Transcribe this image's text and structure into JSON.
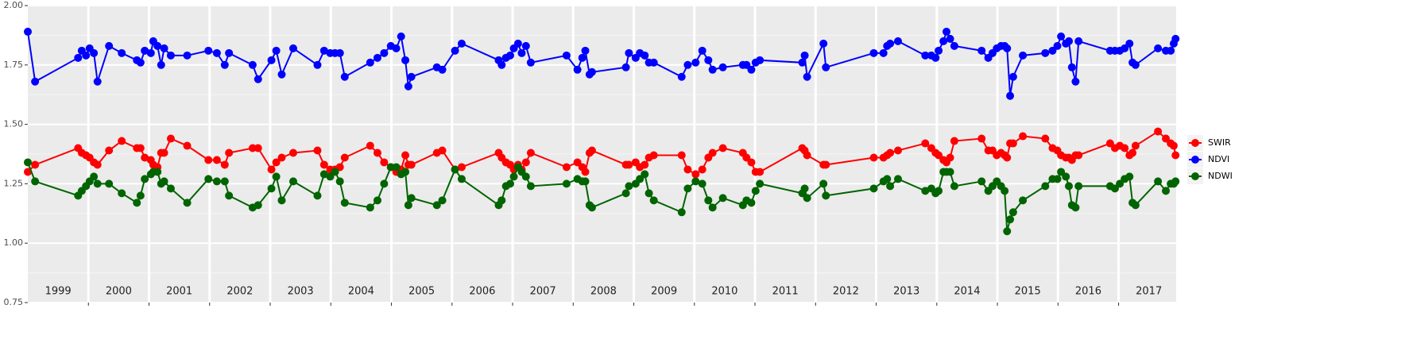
{
  "chart_data": {
    "type": "line",
    "x": [
      1999.0,
      1999.12,
      1999.83,
      1999.89,
      1999.96,
      2000.02,
      2000.09,
      2000.15,
      2000.34,
      2000.55,
      2000.8,
      2000.86,
      2000.93,
      2001.03,
      2001.07,
      2001.14,
      2001.2,
      2001.25,
      2001.36,
      2001.63,
      2001.98,
      2002.12,
      2002.25,
      2002.32,
      2002.71,
      2002.8,
      2003.02,
      2003.1,
      2003.19,
      2003.38,
      2003.78,
      2003.89,
      2003.99,
      2004.07,
      2004.15,
      2004.23,
      2004.65,
      2004.77,
      2004.88,
      2004.99,
      2005.08,
      2005.16,
      2005.23,
      2005.28,
      2005.33,
      2005.75,
      2005.84,
      2006.05,
      2006.16,
      2006.77,
      2006.82,
      2006.89,
      2006.96,
      2007.02,
      2007.09,
      2007.15,
      2007.22,
      2007.3,
      2007.89,
      2008.07,
      2008.15,
      2008.2,
      2008.27,
      2008.31,
      2008.87,
      2008.92,
      2009.03,
      2009.1,
      2009.18,
      2009.25,
      2009.33,
      2009.79,
      2009.89,
      2010.02,
      2010.13,
      2010.23,
      2010.3,
      2010.47,
      2010.8,
      2010.86,
      2010.94,
      2011.01,
      2011.08,
      2011.78,
      2011.82,
      2011.86,
      2012.13,
      2012.17,
      2012.96,
      2013.12,
      2013.18,
      2013.23,
      2013.36,
      2013.81,
      2013.91,
      2013.98,
      2014.03,
      2014.11,
      2014.16,
      2014.22,
      2014.29,
      2014.74,
      2014.85,
      2014.92,
      2014.99,
      2015.06,
      2015.12,
      2015.16,
      2015.21,
      2015.26,
      2015.42,
      2015.79,
      2015.91,
      2015.99,
      2016.05,
      2016.13,
      2016.18,
      2016.23,
      2016.29,
      2016.34,
      2016.86,
      2016.94,
      2017.02,
      2017.1,
      2017.18,
      2017.23,
      2017.28,
      2017.65,
      2017.78,
      2017.86,
      2017.91,
      2017.94
    ],
    "series": [
      {
        "name": "SWIR",
        "color": "#ff0000",
        "values": [
          1.3,
          1.33,
          1.4,
          1.38,
          1.37,
          1.36,
          1.34,
          1.33,
          1.39,
          1.43,
          1.4,
          1.4,
          1.36,
          1.35,
          1.33,
          1.32,
          1.38,
          1.38,
          1.44,
          1.41,
          1.35,
          1.35,
          1.33,
          1.38,
          1.4,
          1.4,
          1.31,
          1.34,
          1.36,
          1.38,
          1.39,
          1.33,
          1.31,
          1.31,
          1.32,
          1.36,
          1.41,
          1.38,
          1.34,
          1.32,
          1.3,
          1.31,
          1.37,
          1.33,
          1.33,
          1.38,
          1.39,
          1.31,
          1.32,
          1.38,
          1.36,
          1.34,
          1.33,
          1.31,
          1.33,
          1.31,
          1.34,
          1.38,
          1.32,
          1.34,
          1.32,
          1.3,
          1.38,
          1.39,
          1.33,
          1.33,
          1.34,
          1.32,
          1.33,
          1.36,
          1.37,
          1.37,
          1.31,
          1.29,
          1.31,
          1.36,
          1.38,
          1.4,
          1.38,
          1.36,
          1.34,
          1.3,
          1.3,
          1.4,
          1.39,
          1.37,
          1.33,
          1.33,
          1.36,
          1.36,
          1.37,
          1.38,
          1.39,
          1.42,
          1.4,
          1.38,
          1.37,
          1.35,
          1.34,
          1.36,
          1.43,
          1.44,
          1.39,
          1.39,
          1.37,
          1.38,
          1.37,
          1.36,
          1.42,
          1.42,
          1.45,
          1.44,
          1.4,
          1.39,
          1.37,
          1.36,
          1.36,
          1.35,
          1.37,
          1.37,
          1.42,
          1.4,
          1.41,
          1.4,
          1.37,
          1.38,
          1.41,
          1.47,
          1.44,
          1.42,
          1.41,
          1.37
        ]
      },
      {
        "name": "NDVI",
        "color": "#0000ff",
        "values": [
          1.89,
          1.68,
          1.78,
          1.81,
          1.79,
          1.82,
          1.8,
          1.68,
          1.83,
          1.8,
          1.77,
          1.76,
          1.81,
          1.8,
          1.85,
          1.83,
          1.75,
          1.82,
          1.79,
          1.79,
          1.81,
          1.8,
          1.75,
          1.8,
          1.75,
          1.69,
          1.77,
          1.81,
          1.71,
          1.82,
          1.75,
          1.81,
          1.8,
          1.8,
          1.8,
          1.7,
          1.76,
          1.78,
          1.8,
          1.83,
          1.82,
          1.87,
          1.77,
          1.66,
          1.7,
          1.74,
          1.73,
          1.81,
          1.84,
          1.77,
          1.75,
          1.78,
          1.79,
          1.82,
          1.84,
          1.8,
          1.83,
          1.76,
          1.79,
          1.73,
          1.78,
          1.81,
          1.71,
          1.72,
          1.74,
          1.8,
          1.78,
          1.8,
          1.79,
          1.76,
          1.76,
          1.7,
          1.75,
          1.76,
          1.81,
          1.77,
          1.73,
          1.74,
          1.75,
          1.75,
          1.73,
          1.76,
          1.77,
          1.76,
          1.79,
          1.7,
          1.84,
          1.74,
          1.8,
          1.8,
          1.83,
          1.84,
          1.85,
          1.79,
          1.79,
          1.78,
          1.81,
          1.85,
          1.89,
          1.86,
          1.83,
          1.81,
          1.78,
          1.8,
          1.82,
          1.83,
          1.83,
          1.82,
          1.62,
          1.7,
          1.79,
          1.8,
          1.81,
          1.83,
          1.87,
          1.84,
          1.85,
          1.74,
          1.68,
          1.85,
          1.81,
          1.81,
          1.81,
          1.82,
          1.84,
          1.76,
          1.75,
          1.82,
          1.81,
          1.81,
          1.84,
          1.86
        ]
      },
      {
        "name": "NDWI",
        "color": "#006400",
        "values": [
          1.34,
          1.26,
          1.2,
          1.22,
          1.24,
          1.26,
          1.28,
          1.25,
          1.25,
          1.21,
          1.17,
          1.2,
          1.27,
          1.29,
          1.3,
          1.3,
          1.25,
          1.26,
          1.23,
          1.17,
          1.27,
          1.26,
          1.26,
          1.2,
          1.15,
          1.16,
          1.23,
          1.28,
          1.18,
          1.26,
          1.2,
          1.29,
          1.28,
          1.3,
          1.26,
          1.17,
          1.15,
          1.18,
          1.25,
          1.32,
          1.32,
          1.29,
          1.3,
          1.16,
          1.19,
          1.16,
          1.18,
          1.31,
          1.27,
          1.16,
          1.18,
          1.24,
          1.25,
          1.28,
          1.32,
          1.3,
          1.28,
          1.24,
          1.25,
          1.27,
          1.26,
          1.26,
          1.16,
          1.15,
          1.21,
          1.24,
          1.25,
          1.27,
          1.29,
          1.21,
          1.18,
          1.13,
          1.23,
          1.26,
          1.25,
          1.18,
          1.15,
          1.19,
          1.16,
          1.18,
          1.17,
          1.22,
          1.25,
          1.21,
          1.23,
          1.19,
          1.25,
          1.2,
          1.23,
          1.26,
          1.27,
          1.24,
          1.27,
          1.22,
          1.23,
          1.21,
          1.22,
          1.3,
          1.3,
          1.3,
          1.24,
          1.26,
          1.22,
          1.24,
          1.26,
          1.24,
          1.22,
          1.05,
          1.1,
          1.13,
          1.18,
          1.24,
          1.27,
          1.27,
          1.3,
          1.28,
          1.24,
          1.16,
          1.15,
          1.24,
          1.24,
          1.23,
          1.25,
          1.27,
          1.28,
          1.17,
          1.16,
          1.26,
          1.22,
          1.25,
          1.25,
          1.26
        ]
      }
    ],
    "year_labels": [
      "1999",
      "2000",
      "2001",
      "2002",
      "2003",
      "2004",
      "2005",
      "2006",
      "2007",
      "2008",
      "2009",
      "2010",
      "2011",
      "2012",
      "2013",
      "2014",
      "2015",
      "2016",
      "2017"
    ],
    "xlim": [
      1999,
      2017.95
    ],
    "xticks": [
      2000,
      2001,
      2002,
      2003,
      2004,
      2005,
      2006,
      2007,
      2008,
      2009,
      2010,
      2011,
      2012,
      2013,
      2014,
      2015,
      2016,
      2017
    ],
    "ylim": [
      0.75,
      2.0
    ],
    "yticks": [
      {
        "value": 0.75,
        "label": "0.75"
      },
      {
        "value": 1.0,
        "label": "1.00"
      },
      {
        "value": 1.25,
        "label": "1.25"
      },
      {
        "value": 1.5,
        "label": "1.50"
      },
      {
        "value": 1.75,
        "label": "1.75"
      },
      {
        "value": 2.0,
        "label": "2.00"
      }
    ],
    "grid": true,
    "legend": "right"
  }
}
